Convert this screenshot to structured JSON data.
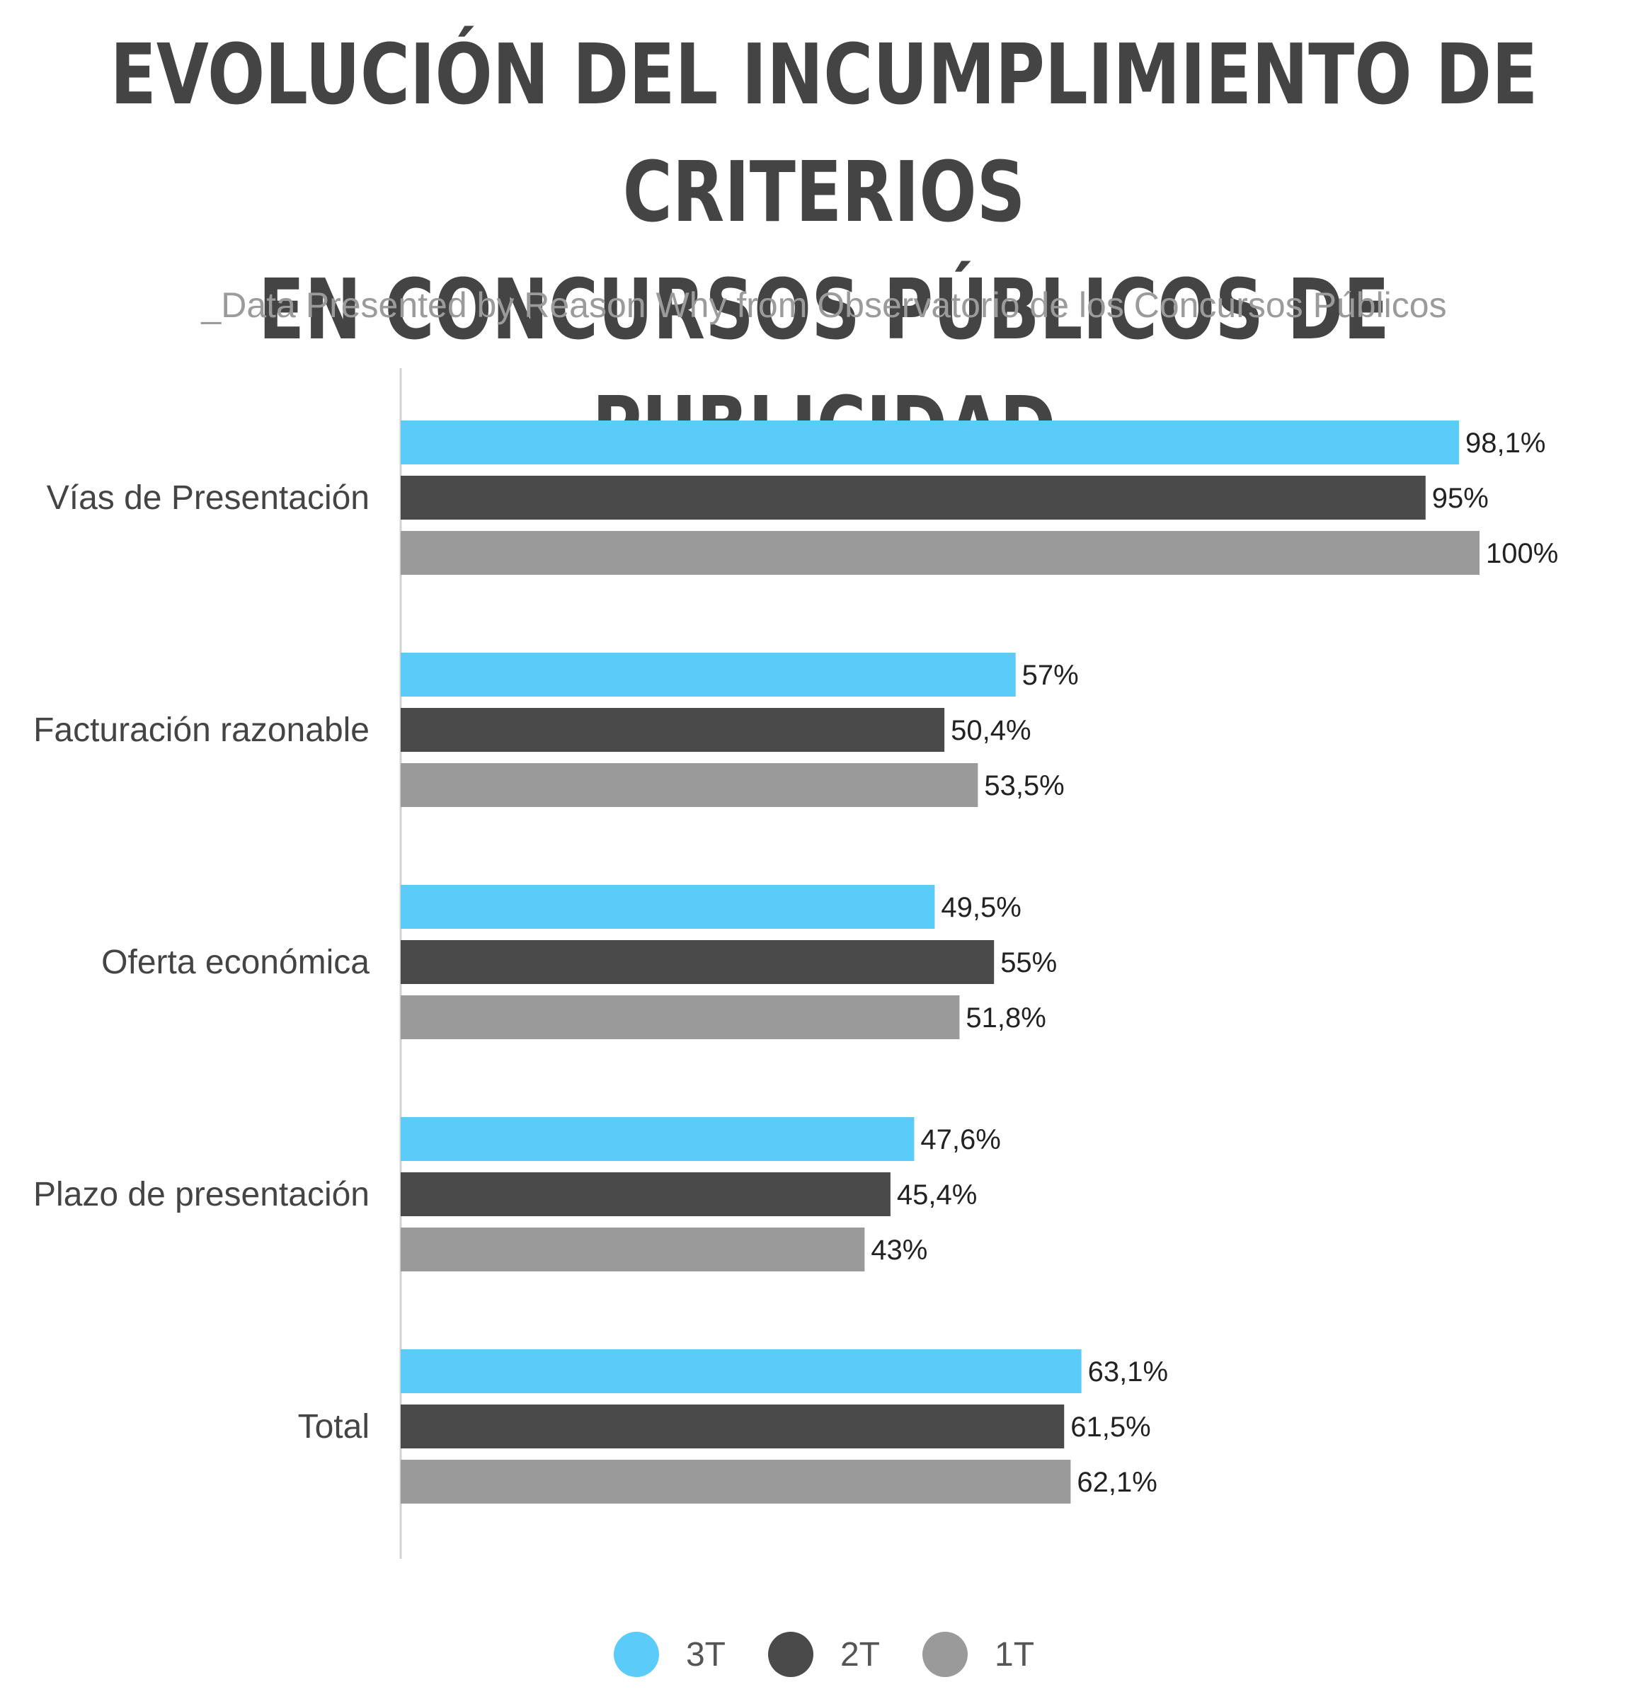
{
  "header": {
    "title_line1": "EVOLUCIÓN DEL INCUMPLIMIENTO DE CRITERIOS",
    "title_line2": "EN CONCURSOS PÚBLICOS DE PUBLICIDAD",
    "subtitle": "_Data Presented by Reason Why from Observatorio de los Concursos Públicos"
  },
  "chart_data": {
    "type": "bar",
    "orientation": "horizontal",
    "title": "EVOLUCIÓN DEL INCUMPLIMIENTO DE CRITERIOS EN CONCURSOS PÚBLICOS DE PUBLICIDAD",
    "subtitle": "_Data Presented by Reason Why from Observatorio de los Concursos Públicos",
    "categories": [
      "Vías de Presentación",
      "Facturación razonable",
      "Oferta económica",
      "Plazo de presentación",
      "Total"
    ],
    "series": [
      {
        "name": "3T",
        "color": "#5bcbfa",
        "values": [
          98.1,
          57,
          49.5,
          47.6,
          63.1
        ],
        "labels": [
          "98,1%",
          "57%",
          "49,5%",
          "47,6%",
          "63,1%"
        ]
      },
      {
        "name": "2T",
        "color": "#4a4a4a",
        "values": [
          95,
          50.4,
          55,
          45.4,
          61.5
        ],
        "labels": [
          "95%",
          "50,4%",
          "55%",
          "45,4%",
          "61,5%"
        ]
      },
      {
        "name": "1T",
        "color": "#9a9a9a",
        "values": [
          100,
          53.5,
          51.8,
          43,
          62.1
        ],
        "labels": [
          "100%",
          "53,5%",
          "51,8%",
          "43%",
          "62,1%"
        ]
      }
    ],
    "xlim": [
      0,
      100
    ],
    "grid": false,
    "legend_position": "bottom"
  }
}
